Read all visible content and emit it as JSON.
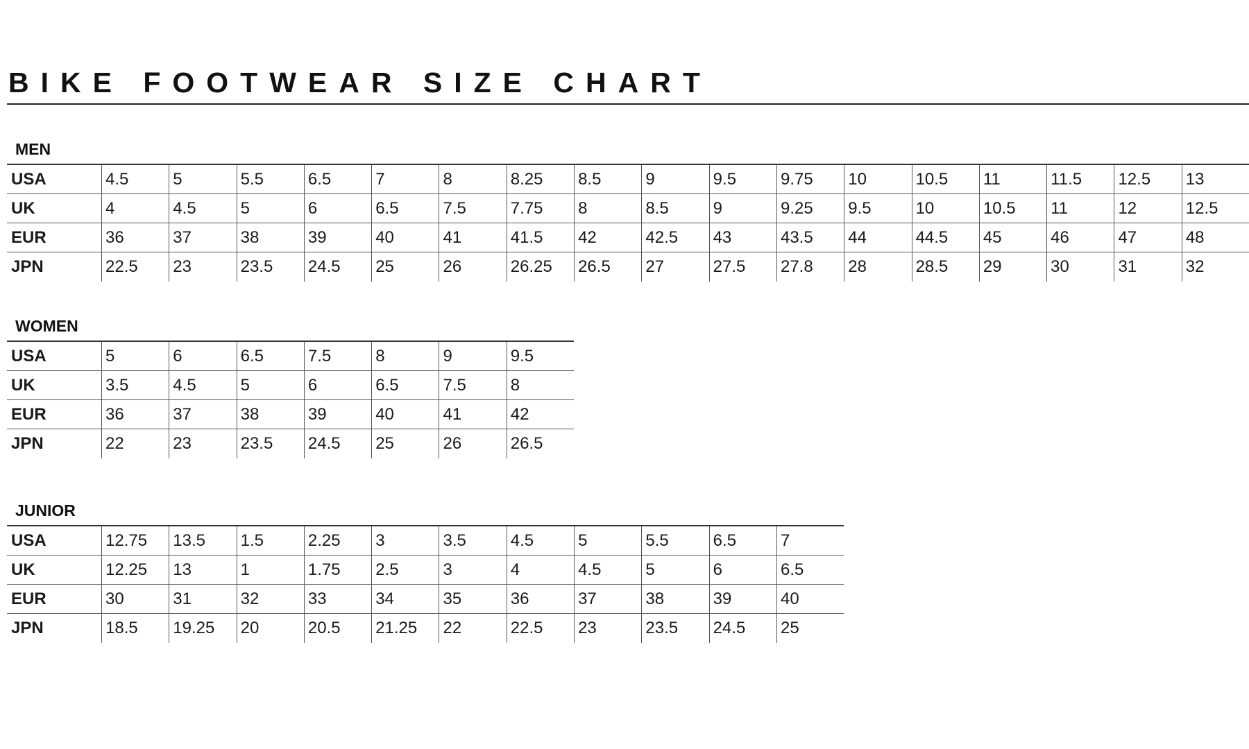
{
  "title": "BIKE FOOTWEAR SIZE CHART",
  "tables": [
    {
      "label": "MEN",
      "rows": [
        {
          "label": "USA",
          "values": [
            "4.5",
            "5",
            "5.5",
            "6.5",
            "7",
            "8",
            "8.25",
            "8.5",
            "9",
            "9.5",
            "9.75",
            "10",
            "10.5",
            "11",
            "11.5",
            "12.5",
            "13"
          ]
        },
        {
          "label": "UK",
          "values": [
            "4",
            "4.5",
            "5",
            "6",
            "6.5",
            "7.5",
            "7.75",
            "8",
            "8.5",
            "9",
            "9.25",
            "9.5",
            "10",
            "10.5",
            "11",
            "12",
            "12.5"
          ]
        },
        {
          "label": "EUR",
          "values": [
            "36",
            "37",
            "38",
            "39",
            "40",
            "41",
            "41.5",
            "42",
            "42.5",
            "43",
            "43.5",
            "44",
            "44.5",
            "45",
            "46",
            "47",
            "48"
          ]
        },
        {
          "label": "JPN",
          "values": [
            "22.5",
            "23",
            "23.5",
            "24.5",
            "25",
            "26",
            "26.25",
            "26.5",
            "27",
            "27.5",
            "27.8",
            "28",
            "28.5",
            "29",
            "30",
            "31",
            "32"
          ]
        }
      ]
    },
    {
      "label": "WOMEN",
      "rows": [
        {
          "label": "USA",
          "values": [
            "5",
            "6",
            "6.5",
            "7.5",
            "8",
            "9",
            "9.5"
          ]
        },
        {
          "label": "UK",
          "values": [
            "3.5",
            "4.5",
            "5",
            "6",
            "6.5",
            "7.5",
            "8"
          ]
        },
        {
          "label": "EUR",
          "values": [
            "36",
            "37",
            "38",
            "39",
            "40",
            "41",
            "42"
          ]
        },
        {
          "label": "JPN",
          "values": [
            "22",
            "23",
            "23.5",
            "24.5",
            "25",
            "26",
            "26.5"
          ]
        }
      ]
    },
    {
      "label": "JUNIOR",
      "rows": [
        {
          "label": "USA",
          "values": [
            "12.75",
            "13.5",
            "1.5",
            "2.25",
            "3",
            "3.5",
            "4.5",
            "5",
            "5.5",
            "6.5",
            "7"
          ]
        },
        {
          "label": "UK",
          "values": [
            "12.25",
            "13",
            "1",
            "1.75",
            "2.5",
            "3",
            "4",
            "4.5",
            "5",
            "6",
            "6.5"
          ]
        },
        {
          "label": "EUR",
          "values": [
            "30",
            "31",
            "32",
            "33",
            "34",
            "35",
            "36",
            "37",
            "38",
            "39",
            "40"
          ]
        },
        {
          "label": "JPN",
          "values": [
            "18.5",
            "19.25",
            "20",
            "20.5",
            "21.25",
            "22",
            "22.5",
            "23",
            "23.5",
            "24.5",
            "25"
          ]
        }
      ]
    }
  ]
}
